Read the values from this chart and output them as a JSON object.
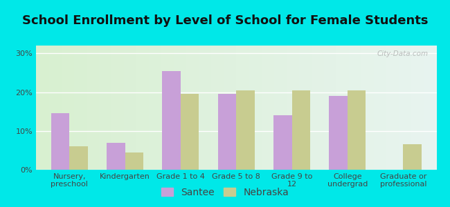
{
  "title": "School Enrollment by Level of School for Female Students",
  "categories": [
    "Nursery,\npreschool",
    "Kindergarten",
    "Grade 1 to 4",
    "Grade 5 to 8",
    "Grade 9 to\n12",
    "College\nundergrad",
    "Graduate or\nprofessional"
  ],
  "santee_values": [
    14.5,
    7.0,
    25.5,
    19.5,
    14.0,
    19.0,
    0
  ],
  "nebraska_values": [
    6.0,
    4.5,
    19.5,
    20.5,
    20.5,
    20.5,
    6.5
  ],
  "santee_color": "#c8a0d8",
  "nebraska_color": "#c8cc90",
  "background_outer": "#00e8e8",
  "background_inner_left": "#d8f0d0",
  "background_inner_right": "#e8f4f0",
  "ylim": [
    0,
    32
  ],
  "yticks": [
    0,
    10,
    20,
    30
  ],
  "ytick_labels": [
    "0%",
    "10%",
    "20%",
    "30%"
  ],
  "legend_labels": [
    "Santee",
    "Nebraska"
  ],
  "title_fontsize": 13,
  "tick_fontsize": 8,
  "legend_fontsize": 10,
  "bar_width": 0.33,
  "watermark": "City-Data.com"
}
